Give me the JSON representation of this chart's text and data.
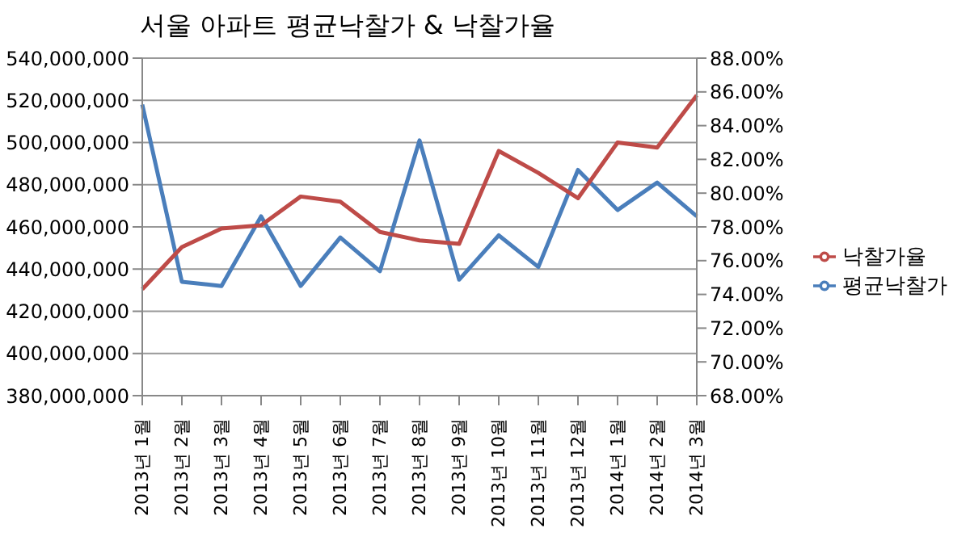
{
  "chart_data": {
    "type": "line",
    "title": "서울 아파트 평균낙찰가 & 낙찰가율",
    "categories": [
      "2013년 1월",
      "2013년 2월",
      "2013년 3월",
      "2013년 4월",
      "2013년 5월",
      "2013년 6월",
      "2013년 7월",
      "2013년 8월",
      "2013년 9월",
      "2013년 10월",
      "2013년 11월",
      "2013년 12월",
      "2014년 1월",
      "2014년 2월",
      "2014년 3월"
    ],
    "series": [
      {
        "name": "평균낙찰가",
        "color": "#4a7ebb",
        "values": [
          518000000,
          434000000,
          432000000,
          465000000,
          432000000,
          455000000,
          439000000,
          501000000,
          435000000,
          456000000,
          441000000,
          487000000,
          468000000,
          481000000,
          465000000
        ]
      },
      {
        "name": "낙찰가율",
        "color": "#be4b48",
        "axis": "y2",
        "values": [
          74.3,
          76.8,
          77.9,
          78.1,
          79.8,
          79.5,
          77.7,
          77.2,
          77.0,
          82.5,
          81.2,
          79.7,
          83.0,
          82.7,
          85.8
        ]
      }
    ],
    "ylim": [
      380000000,
      540000000
    ],
    "yticks": [
      {
        "value": 380000000,
        "label": "380,000,000"
      },
      {
        "value": 400000000,
        "label": "400,000,000"
      },
      {
        "value": 420000000,
        "label": "420,000,000"
      },
      {
        "value": 440000000,
        "label": "440,000,000"
      },
      {
        "value": 460000000,
        "label": "460,000,000"
      },
      {
        "value": 480000000,
        "label": "480,000,000"
      },
      {
        "value": 500000000,
        "label": "500,000,000"
      },
      {
        "value": 520000000,
        "label": "520,000,000"
      },
      {
        "value": 540000000,
        "label": "540,000,000"
      }
    ],
    "y2lim": [
      68,
      88
    ],
    "y2ticks": [
      {
        "value": 68,
        "label": "68.00%"
      },
      {
        "value": 70,
        "label": "70.00%"
      },
      {
        "value": 72,
        "label": "72.00%"
      },
      {
        "value": 74,
        "label": "74.00%"
      },
      {
        "value": 76,
        "label": "76.00%"
      },
      {
        "value": 78,
        "label": "78.00%"
      },
      {
        "value": 80,
        "label": "80.00%"
      },
      {
        "value": 82,
        "label": "82.00%"
      },
      {
        "value": 84,
        "label": "84.00%"
      },
      {
        "value": 86,
        "label": "86.00%"
      },
      {
        "value": 88,
        "label": "88.00%"
      }
    ],
    "grid": "y",
    "legend": "right",
    "marker": "none",
    "line_style": "solid"
  }
}
